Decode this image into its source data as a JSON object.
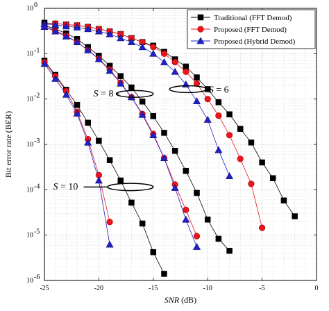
{
  "chart_data": {
    "type": "line",
    "title": "",
    "xlabel_italic": "SNR",
    "xlabel_unit": " (dB)",
    "ylabel": "Bit error rate (BER)",
    "xlim": [
      -25,
      0
    ],
    "ylim": [
      1e-06,
      1
    ],
    "yscale": "log",
    "grid": "dotted",
    "x_ticks": [
      {
        "value": -25,
        "label": "-25"
      },
      {
        "value": -20,
        "label": "-20"
      },
      {
        "value": -15,
        "label": "-15"
      },
      {
        "value": -10,
        "label": "-10"
      },
      {
        "value": -5,
        "label": "-5"
      },
      {
        "value": 0,
        "label": "0"
      }
    ],
    "y_ticks": [
      {
        "value": 1e-06,
        "base": "10",
        "exp": "-6"
      },
      {
        "value": 1e-05,
        "base": "10",
        "exp": "-5"
      },
      {
        "value": 0.0001,
        "base": "10",
        "exp": "-4"
      },
      {
        "value": 0.001,
        "base": "10",
        "exp": "-3"
      },
      {
        "value": 0.01,
        "base": "10",
        "exp": "-2"
      },
      {
        "value": 0.1,
        "base": "10",
        "exp": "-1"
      },
      {
        "value": 1,
        "base": "10",
        "exp": "0"
      }
    ],
    "legend": {
      "position": "top-right",
      "entries": [
        {
          "label": "Traditional (FFT Demod)",
          "color": "#000000",
          "marker": "square"
        },
        {
          "label": "Proposed (FFT Demod)",
          "color": "#e8141e",
          "marker": "circle"
        },
        {
          "label": "Proposed (Hybrid Demod)",
          "color": "#2020c8",
          "marker": "triangle"
        }
      ]
    },
    "series": [
      {
        "group": "S=6",
        "style": 0,
        "x": [
          -25,
          -24,
          -23,
          -22,
          -21,
          -20,
          -19,
          -18,
          -17,
          -16,
          -15,
          -14,
          -13,
          -12,
          -11,
          -10,
          -9,
          -8,
          -7,
          -6,
          -5,
          -4,
          -3,
          -2
        ],
        "y": [
          0.48,
          0.46,
          0.44,
          0.42,
          0.39,
          0.35,
          0.31,
          0.27,
          0.22,
          0.18,
          0.15,
          0.11,
          0.075,
          0.052,
          0.03,
          0.0165,
          0.0085,
          0.0046,
          0.0022,
          0.0011,
          0.0004,
          0.00018,
          5.8e-05,
          2.6e-05
        ]
      },
      {
        "group": "S=6",
        "style": 1,
        "x": [
          -24,
          -23,
          -22,
          -21,
          -20,
          -19,
          -18,
          -17,
          -16,
          -15,
          -14,
          -13,
          -12,
          -11,
          -10,
          -9,
          -8,
          -7,
          -6,
          -5
        ],
        "y": [
          0.46,
          0.44,
          0.42,
          0.39,
          0.35,
          0.31,
          0.27,
          0.22,
          0.18,
          0.14,
          0.1,
          0.065,
          0.04,
          0.022,
          0.01,
          0.0043,
          0.0016,
          0.00048,
          0.000135,
          1.45e-05
        ]
      },
      {
        "group": "S=6",
        "style": 2,
        "x": [
          -25,
          -24,
          -23,
          -22,
          -21,
          -20,
          -19,
          -18,
          -17,
          -16,
          -15,
          -14,
          -13,
          -12,
          -11,
          -10,
          -9,
          -8
        ],
        "y": [
          0.45,
          0.43,
          0.4,
          0.38,
          0.35,
          0.31,
          0.27,
          0.22,
          0.18,
          0.14,
          0.1,
          0.065,
          0.04,
          0.021,
          0.009,
          0.0035,
          0.00075,
          0.0002
        ]
      },
      {
        "group": "S=8",
        "style": 0,
        "x": [
          -25,
          -24,
          -23,
          -22,
          -21,
          -20,
          -19,
          -18,
          -17,
          -16,
          -15,
          -14,
          -13,
          -12,
          -11,
          -10,
          -9,
          -8
        ],
        "y": [
          0.42,
          0.35,
          0.28,
          0.21,
          0.14,
          0.09,
          0.054,
          0.032,
          0.018,
          0.0088,
          0.0042,
          0.0018,
          0.00072,
          0.00026,
          8.5e-05,
          2.2e-05,
          8.3e-06,
          4.5e-06
        ]
      },
      {
        "group": "S=8",
        "style": 1,
        "x": [
          -25,
          -24,
          -23,
          -22,
          -21,
          -20,
          -19,
          -18,
          -17,
          -16,
          -15,
          -14,
          -13,
          -12,
          -11
        ],
        "y": [
          0.4,
          0.32,
          0.25,
          0.18,
          0.12,
          0.078,
          0.045,
          0.023,
          0.011,
          0.0047,
          0.0017,
          0.0005,
          0.00013,
          3.6e-05,
          9.5e-06
        ]
      },
      {
        "group": "S=8",
        "style": 2,
        "x": [
          -25,
          -24,
          -23,
          -22,
          -21,
          -20,
          -19,
          -18,
          -17,
          -16,
          -15,
          -14,
          -13,
          -12,
          -11
        ],
        "y": [
          0.39,
          0.31,
          0.24,
          0.18,
          0.12,
          0.076,
          0.042,
          0.022,
          0.011,
          0.0045,
          0.0016,
          0.0005,
          0.00011,
          2.2e-05,
          5.5e-06
        ]
      },
      {
        "group": "S=10",
        "style": 0,
        "x": [
          -25,
          -24,
          -23,
          -22,
          -21,
          -20,
          -19,
          -18,
          -17,
          -16,
          -15,
          -14
        ],
        "y": [
          0.07,
          0.034,
          0.016,
          0.0074,
          0.003,
          0.0012,
          0.00045,
          0.00016,
          5.2e-05,
          1.8e-05,
          4.2e-06,
          1.4e-06
        ]
      },
      {
        "group": "S=10",
        "style": 1,
        "x": [
          -25,
          -24,
          -23,
          -22,
          -21,
          -20,
          -19
        ],
        "y": [
          0.065,
          0.032,
          0.015,
          0.0052,
          0.0013,
          0.00021,
          1.95e-05
        ]
      },
      {
        "group": "S=10",
        "style": 2,
        "x": [
          -25,
          -24,
          -23,
          -22,
          -21,
          -20,
          -19
        ],
        "y": [
          0.06,
          0.028,
          0.0125,
          0.0048,
          0.0011,
          0.00016,
          6.2e-06
        ]
      }
    ],
    "annotations": [
      {
        "label_pre": "S",
        "label_post": " = 8",
        "text_x": -20.5,
        "text_y": 0.0135,
        "ellipse_cx": -16.7,
        "ellipse_cy": 0.013,
        "ellipse_rx_x": 1.7,
        "ellipse_ry_dec": 0.075
      },
      {
        "label_pre": "S",
        "label_post": " = 6",
        "text_x": -9.9,
        "text_y": 0.0165,
        "ellipse_cx": -11.8,
        "ellipse_cy": 0.0165,
        "ellipse_rx_x": 1.7,
        "ellipse_ry_dec": 0.075
      },
      {
        "label_pre": "S",
        "label_post": " = 10",
        "text_x": -24.2,
        "text_y": 0.00012,
        "ellipse_cx": -17.1,
        "ellipse_cy": 0.000115,
        "ellipse_rx_x": 2.1,
        "ellipse_ry_dec": 0.08
      }
    ]
  }
}
